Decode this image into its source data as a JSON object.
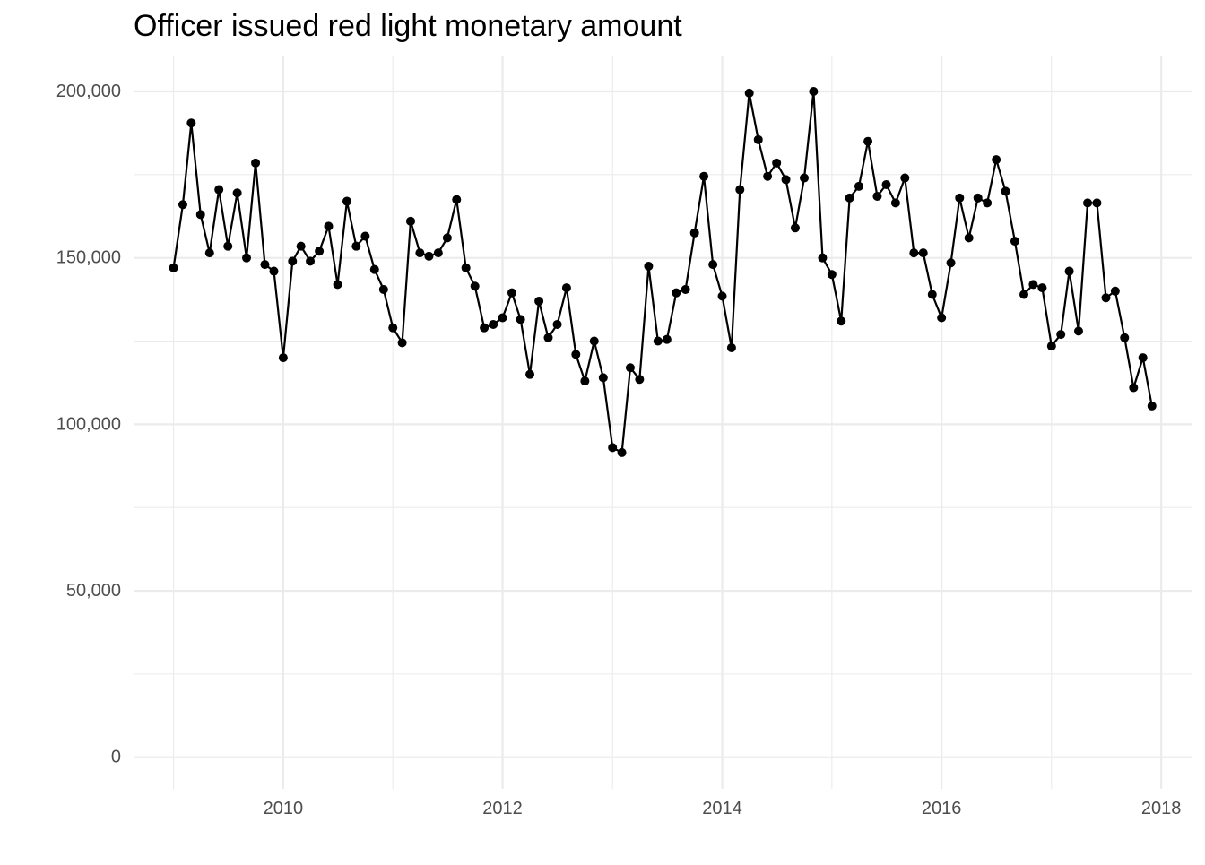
{
  "chart_data": {
    "type": "line",
    "title": "Officer issued red light monetary amount",
    "xlabel": "",
    "ylabel": "",
    "x_axis": {
      "type": "date",
      "ticks": [
        "2010",
        "2012",
        "2014",
        "2016",
        "2018"
      ]
    },
    "y_axis": {
      "ticks": [
        0,
        50000,
        100000,
        150000,
        200000
      ],
      "tick_labels": [
        "0",
        "50,000",
        "100,000",
        "150,000",
        "200,000"
      ]
    },
    "xlim": [
      "2008-08-21",
      "2018-04-12"
    ],
    "ylim": [
      -9500,
      210500
    ],
    "grid": true,
    "legend": "none",
    "colors": {
      "line": "#000000",
      "point": "#000000",
      "grid": "#ebebeb",
      "tick_text": "#4d4d4d"
    },
    "series": [
      {
        "x": [
          "2009-01",
          "2009-02",
          "2009-03",
          "2009-04",
          "2009-05",
          "2009-06",
          "2009-07",
          "2009-08",
          "2009-09",
          "2009-10",
          "2009-11",
          "2009-12",
          "2010-01",
          "2010-02",
          "2010-03",
          "2010-04",
          "2010-05",
          "2010-06",
          "2010-07",
          "2010-08",
          "2010-09",
          "2010-10",
          "2010-11",
          "2010-12",
          "2011-01",
          "2011-02",
          "2011-03",
          "2011-04",
          "2011-05",
          "2011-06",
          "2011-07",
          "2011-08",
          "2011-09",
          "2011-10",
          "2011-11",
          "2011-12",
          "2012-01",
          "2012-02",
          "2012-03",
          "2012-04",
          "2012-05",
          "2012-06",
          "2012-07",
          "2012-08",
          "2012-09",
          "2012-10",
          "2012-11",
          "2012-12",
          "2013-01",
          "2013-02",
          "2013-03",
          "2013-04",
          "2013-05",
          "2013-06",
          "2013-07",
          "2013-08",
          "2013-09",
          "2013-10",
          "2013-11",
          "2013-12",
          "2014-01",
          "2014-02",
          "2014-03",
          "2014-04",
          "2014-05",
          "2014-06",
          "2014-07",
          "2014-08",
          "2014-09",
          "2014-10",
          "2014-11",
          "2014-12",
          "2015-01",
          "2015-02",
          "2015-03",
          "2015-04",
          "2015-05",
          "2015-06",
          "2015-07",
          "2015-08",
          "2015-09",
          "2015-10",
          "2015-11",
          "2015-12",
          "2016-01",
          "2016-02",
          "2016-03",
          "2016-04",
          "2016-05",
          "2016-06",
          "2016-07",
          "2016-08",
          "2016-09",
          "2016-10",
          "2016-11",
          "2016-12",
          "2017-01",
          "2017-02",
          "2017-03",
          "2017-04",
          "2017-05",
          "2017-06",
          "2017-07",
          "2017-08",
          "2017-09",
          "2017-10",
          "2017-11",
          "2017-12"
        ],
        "y": [
          147000,
          166000,
          190500,
          163000,
          151500,
          170500,
          153500,
          169500,
          150000,
          178500,
          148000,
          146000,
          120000,
          149000,
          153500,
          149000,
          152000,
          159500,
          142000,
          167000,
          153500,
          156500,
          146500,
          140500,
          129000,
          124500,
          161000,
          151500,
          150500,
          151500,
          156000,
          167500,
          147000,
          141500,
          129000,
          130000,
          132000,
          139500,
          131500,
          115000,
          137000,
          126000,
          130000,
          141000,
          121000,
          113000,
          125000,
          114000,
          93000,
          91500,
          117000,
          113500,
          147500,
          125000,
          125500,
          139500,
          140500,
          157500,
          174500,
          148000,
          138500,
          123000,
          170500,
          199500,
          185500,
          174500,
          178500,
          173500,
          159000,
          174000,
          200000,
          150000,
          145000,
          131000,
          168000,
          171500,
          185000,
          168500,
          172000,
          166500,
          174000,
          151500,
          151500,
          139000,
          132000,
          148500,
          168000,
          156000,
          168000,
          166500,
          179500,
          170000,
          155000,
          139000,
          142000,
          141000,
          123500,
          127000,
          146000,
          128000,
          166500,
          166500,
          138000,
          140000,
          126000,
          111000,
          120000,
          105500
        ]
      }
    ]
  }
}
